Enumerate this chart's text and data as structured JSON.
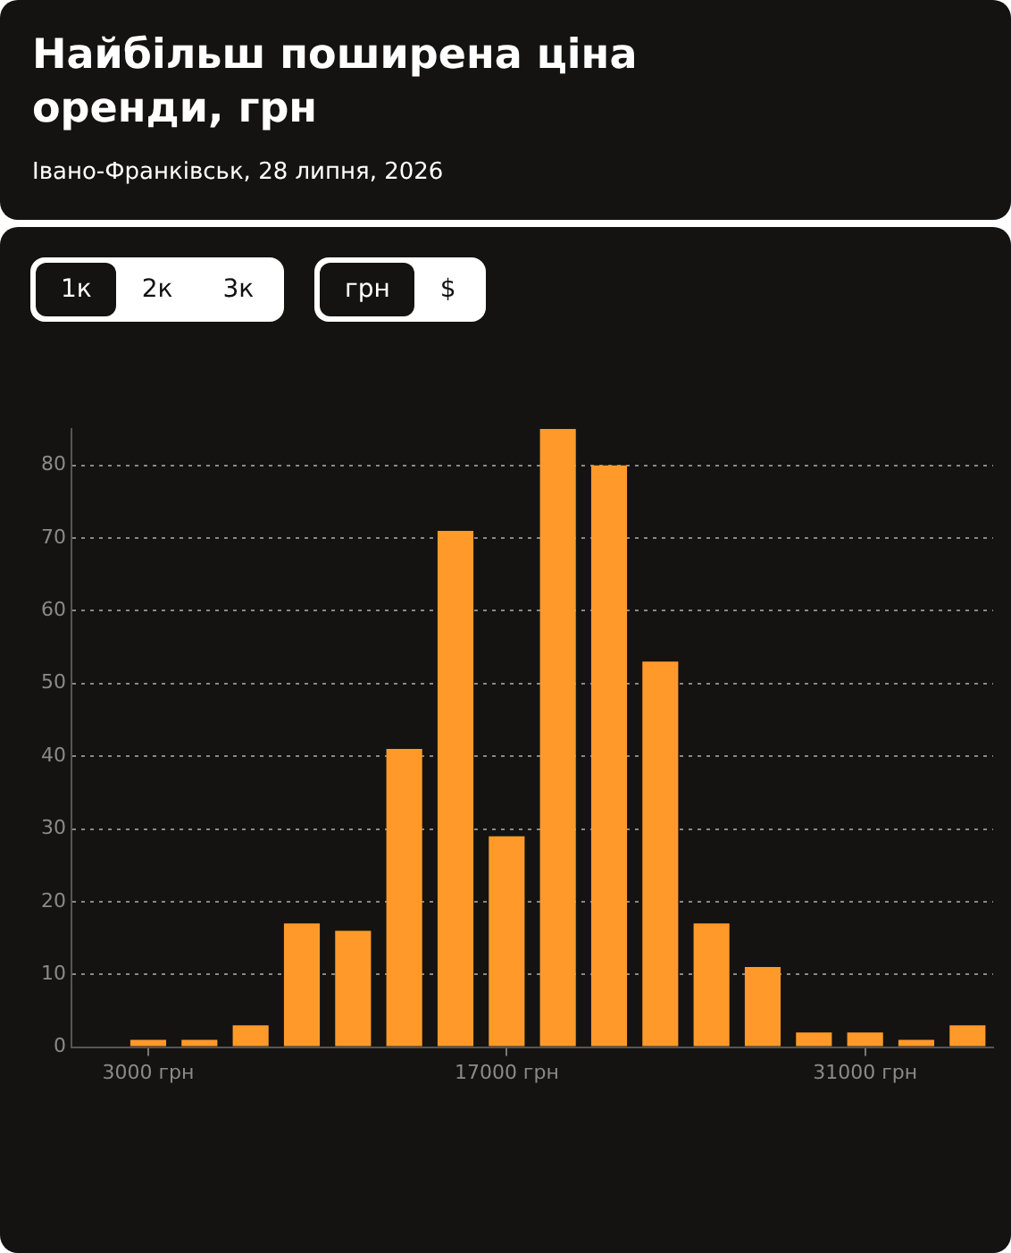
{
  "chart_data": {
    "type": "histogram",
    "title": "Найбільш поширена ціна оренди, грн",
    "subtitle": "Івано-Франківськ, 28 липня, 2026",
    "annotations": [
      "1к",
      "2к",
      "3к",
      "грн",
      "$"
    ],
    "bins": [
      2000,
      4000,
      6000,
      8000,
      10000,
      12000,
      14000,
      16000,
      18000,
      20000,
      22000,
      24000,
      26000,
      28000,
      30000,
      32000,
      34000,
      36000
    ],
    "values": [
      1,
      1,
      3,
      17,
      16,
      41,
      71,
      29,
      85,
      80,
      53,
      17,
      11,
      2,
      2,
      1,
      3
    ],
    "color": "#ff9a2a",
    "xlim": [
      0,
      36000
    ],
    "xticks": [
      {
        "value": 3000,
        "label": "3000 грн"
      },
      {
        "value": 17000,
        "label": "17000 грн"
      },
      {
        "value": 31000,
        "label": "31000 грн"
      }
    ],
    "ylim": [
      0,
      85
    ],
    "yticks": [
      0,
      10,
      20,
      30,
      40,
      50,
      60,
      70,
      80
    ],
    "grid": "y",
    "legend": false
  }
}
